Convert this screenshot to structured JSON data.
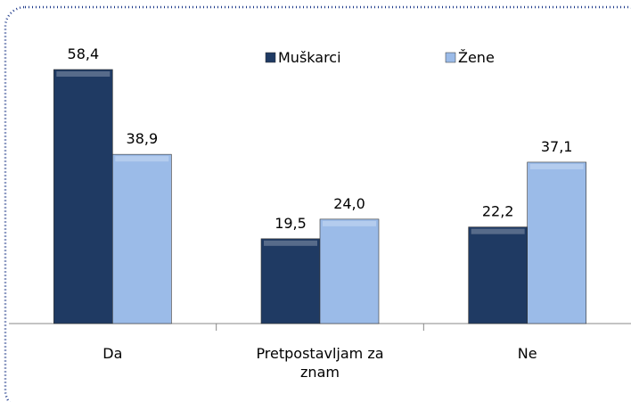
{
  "chart_data": {
    "type": "bar",
    "categories": [
      "Da",
      "Pretpostavljam za znam",
      "Ne"
    ],
    "series": [
      {
        "name": "Muškarci",
        "color": "#1f3a63",
        "values": [
          58.4,
          19.5,
          22.2
        ],
        "value_labels": [
          "58,4",
          "19,5",
          "22,2"
        ]
      },
      {
        "name": "Žene",
        "color": "#9bbbe8",
        "values": [
          38.9,
          24.0,
          37.1
        ],
        "value_labels": [
          "38,9",
          "24,0",
          "37,1"
        ]
      }
    ]
  }
}
